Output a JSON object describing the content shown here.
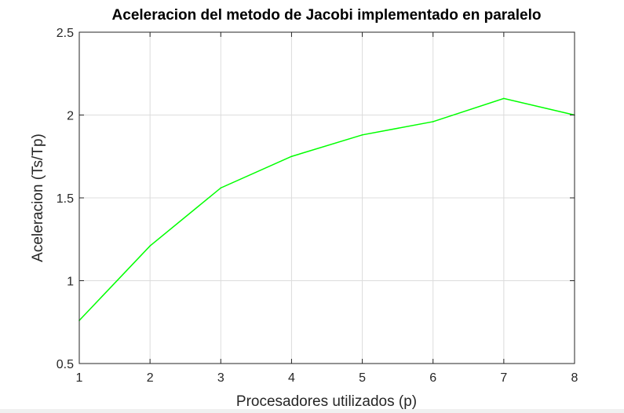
{
  "chart_data": {
    "type": "line",
    "title": "Aceleracion del metodo de Jacobi implementado en paralelo",
    "xlabel": "Procesadores utilizados (p)",
    "ylabel": "Aceleracion (Ts/Tp)",
    "xlim": [
      1,
      8
    ],
    "ylim": [
      0.5,
      2.5
    ],
    "xticks": [
      "1",
      "2",
      "3",
      "4",
      "5",
      "6",
      "7",
      "8"
    ],
    "yticks": [
      "0.5",
      "1",
      "1.5",
      "2",
      "2.5"
    ],
    "grid": true,
    "series": [
      {
        "color": "#00ff00",
        "x": [
          1,
          2,
          3,
          4,
          5,
          6,
          7,
          8
        ],
        "y": [
          0.76,
          1.21,
          1.56,
          1.75,
          1.88,
          1.96,
          2.1,
          2.0
        ]
      }
    ]
  }
}
